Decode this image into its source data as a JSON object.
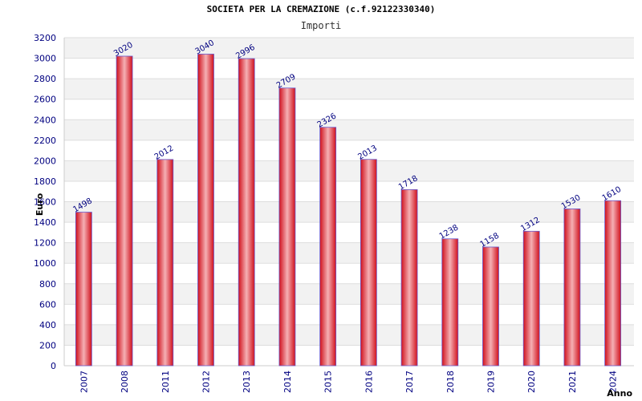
{
  "chart_data": {
    "type": "bar",
    "title": "SOCIETA PER LA CREMAZIONE (c.f.92122330340)",
    "subtitle": "Importi",
    "xlabel": "Anno",
    "ylabel": "Euro",
    "ylim": [
      0,
      3200
    ],
    "yticks": [
      0,
      200,
      400,
      600,
      800,
      1000,
      1200,
      1400,
      1600,
      1800,
      2000,
      2200,
      2400,
      2600,
      2800,
      3000,
      3200
    ],
    "categories": [
      "2007",
      "2008",
      "2011",
      "2012",
      "2013",
      "2014",
      "2015",
      "2016",
      "2017",
      "2018",
      "2019",
      "2020",
      "2021",
      "2024"
    ],
    "values": [
      1498,
      3020,
      2012,
      3040,
      2996,
      2709,
      2326,
      2013,
      1718,
      1238,
      1158,
      1312,
      1530,
      1610
    ],
    "grid": true,
    "legend": "none",
    "colors": {
      "bar": "#e8202a",
      "bar_highlight": "#f5b0b4",
      "bar_edge": "#6a5acd",
      "text": "#000080",
      "band": "#f2f2f2"
    }
  }
}
